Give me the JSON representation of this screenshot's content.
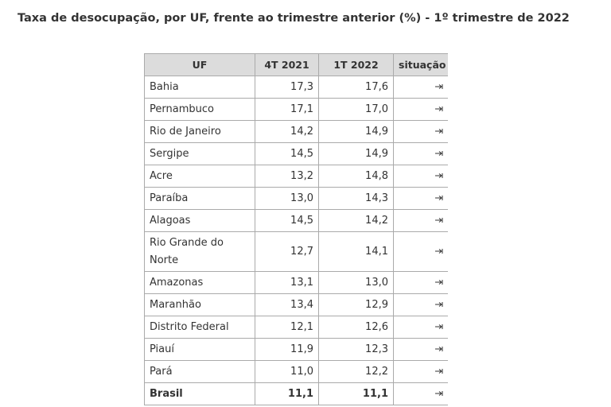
{
  "title": "Taxa de desocupação, por UF, frente ao trimestre anterior (%) - 1º trimestre de 2022",
  "table": {
    "header": [
      "UF",
      "4T 2021",
      "1T 2022",
      "situação"
    ],
    "rows": [
      [
        "Bahia",
        "17,3",
        "17,6"
      ],
      [
        "Pernambuco",
        "17,1",
        "17,0"
      ],
      [
        "Rio de Janeiro",
        "14,2",
        "14,9"
      ],
      [
        "Sergipe",
        "14,5",
        "14,9"
      ],
      [
        "Acre",
        "13,2",
        "14,8"
      ],
      [
        "Paraíba",
        "13,0",
        "14,3"
      ],
      [
        "Alagoas",
        "14,5",
        "14,2"
      ],
      [
        "Rio Grande do Norte",
        "12,7",
        "14,1"
      ],
      [
        "Amazonas",
        "13,1",
        "13,0"
      ],
      [
        "Maranhão",
        "13,4",
        "12,9"
      ],
      [
        "Distrito Federal",
        "12,1",
        "12,6"
      ],
      [
        "Piauí",
        "11,9",
        "12,3"
      ],
      [
        "Pará",
        "11,0",
        "12,2"
      ],
      [
        "Brasil",
        "11,1",
        "11,1"
      ]
    ]
  }
}
